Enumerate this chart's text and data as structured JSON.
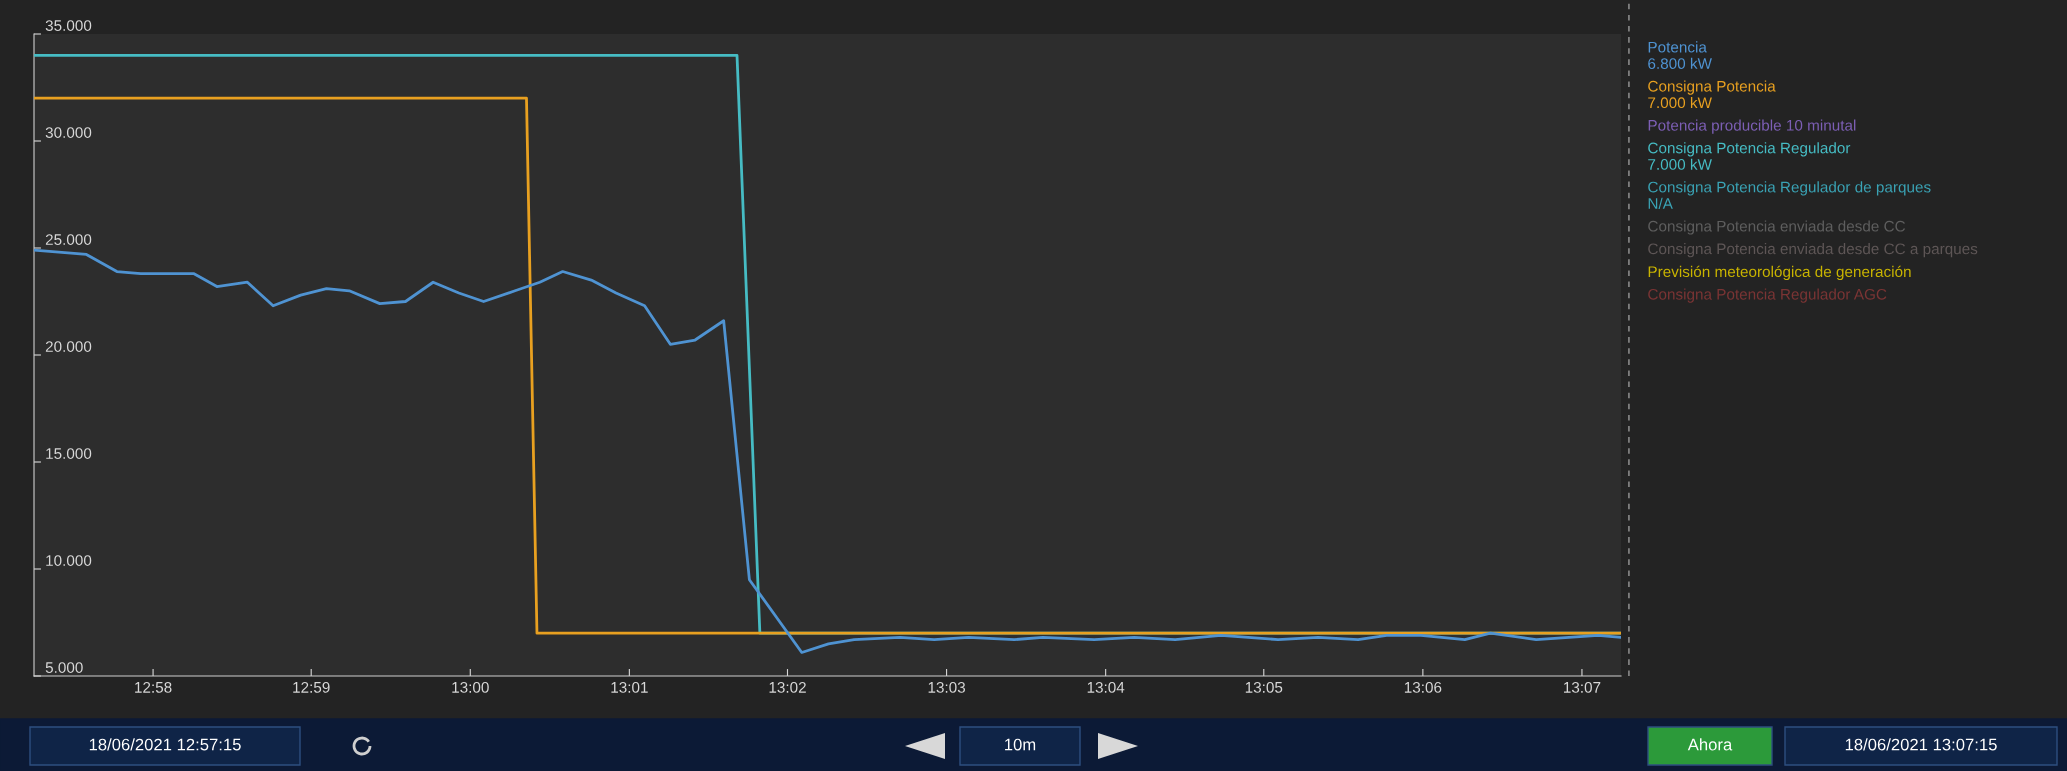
{
  "chart_data": {
    "type": "line",
    "legend": "right",
    "grid": false,
    "marker": "none",
    "line_style": "solid",
    "xlim": [
      12.9542,
      13.1208
    ],
    "xticks": [
      {
        "value": 12.9667,
        "label": "12:58"
      },
      {
        "value": 12.9833,
        "label": "12:59"
      },
      {
        "value": 13.0,
        "label": "13:00"
      },
      {
        "value": 13.0167,
        "label": "13:01"
      },
      {
        "value": 13.0333,
        "label": "13:02"
      },
      {
        "value": 13.05,
        "label": "13:03"
      },
      {
        "value": 13.0667,
        "label": "13:04"
      },
      {
        "value": 13.0833,
        "label": "13:05"
      },
      {
        "value": 13.1,
        "label": "13:06"
      },
      {
        "value": 13.1167,
        "label": "13:07"
      }
    ],
    "ylim": [
      5000,
      35000
    ],
    "yticks": [
      {
        "value": 5000,
        "label": "5.000"
      },
      {
        "value": 10000,
        "label": "10.000"
      },
      {
        "value": 15000,
        "label": "15.000"
      },
      {
        "value": 20000,
        "label": "20.000"
      },
      {
        "value": 25000,
        "label": "25.000"
      },
      {
        "value": 30000,
        "label": "30.000"
      },
      {
        "value": 35000,
        "label": "35.000"
      }
    ],
    "series": [
      {
        "name": "Potencia\n6.800 kW",
        "color": "#4f93d2",
        "x": [
          12.9542,
          12.9597,
          12.9629,
          12.9654,
          12.9683,
          12.971,
          12.9734,
          12.9766,
          12.9793,
          12.9822,
          12.9849,
          12.9873,
          12.9905,
          12.9932,
          12.9961,
          12.9988,
          13.0014,
          13.0047,
          13.0073,
          13.0097,
          13.0127,
          13.0153,
          13.0183,
          13.021,
          13.0236,
          13.0266,
          13.0293,
          13.0348,
          13.0376,
          13.0403,
          13.0451,
          13.0487,
          13.0523,
          13.0571,
          13.0601,
          13.0655,
          13.0697,
          13.074,
          13.0788,
          13.0848,
          13.089,
          13.0932,
          13.0962,
          13.0998,
          13.1044,
          13.1071,
          13.1119,
          13.1184,
          13.1208
        ],
        "values": [
          24900,
          24700,
          23900,
          23800,
          23800,
          23800,
          23200,
          23400,
          22300,
          22800,
          23100,
          23000,
          22400,
          22500,
          23400,
          22900,
          22500,
          23000,
          23400,
          23900,
          23500,
          22900,
          22300,
          20500,
          20700,
          21600,
          9500,
          6100,
          6500,
          6700,
          6800,
          6700,
          6800,
          6700,
          6800,
          6700,
          6800,
          6700,
          6900,
          6700,
          6800,
          6700,
          6900,
          6900,
          6700,
          7000,
          6700,
          6900,
          6800
        ]
      },
      {
        "name": "Consigna Potencia\n7.000 kW",
        "color": "#e8a020",
        "x": [
          12.9542,
          13.0059,
          13.007,
          13.1208
        ],
        "values": [
          32000,
          32000,
          7000,
          7000
        ]
      },
      {
        "name": "Potencia producible 10 minutal",
        "color": "#7d5fb5"
      },
      {
        "name": "Consigna Potencia Regulador\n7.000 kW",
        "color": "#46bcc4",
        "x": [
          12.9542,
          13.028,
          13.0304,
          13.1208
        ],
        "values": [
          34000,
          34000,
          7000,
          7000
        ]
      },
      {
        "name": "Consigna Potencia Regulador de parques\nN/A",
        "color": "#3aa3b5"
      },
      {
        "name": "Consigna Potencia enviada desde CC",
        "color": "#5e5e5e"
      },
      {
        "name": "Consigna Potencia enviada desde CC a parques",
        "color": "#5e5656"
      },
      {
        "name": "Previsión meteorológica de generación",
        "color": "#c9b400"
      },
      {
        "name": "Consigna Potencia Regulador AGC",
        "color": "#7a3434"
      }
    ],
    "annotations": [
      "18/06/2021 12:57:15",
      "10m",
      "Ahora",
      "18/06/2021 13:07:15"
    ]
  }
}
